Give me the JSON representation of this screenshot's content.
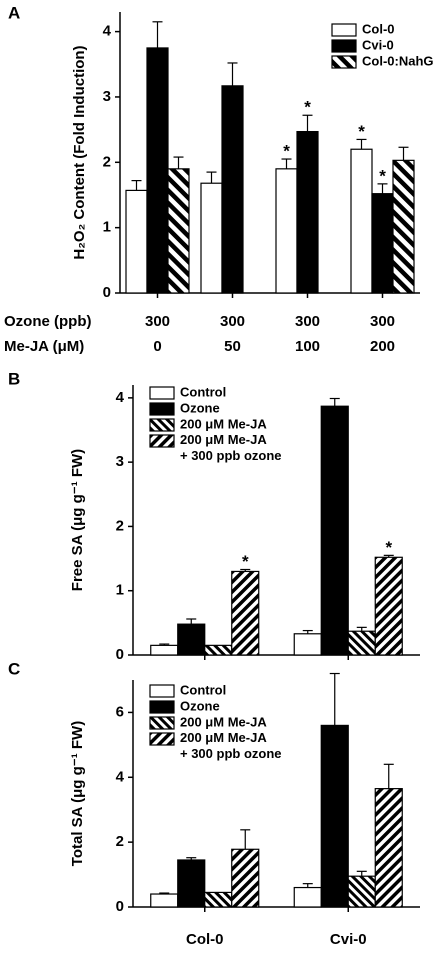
{
  "chart_data": [
    {
      "type": "bar",
      "panel": "A",
      "ylabel": "H₂O₂ Content (Fold Induction)",
      "ylim": [
        0,
        4.3
      ],
      "yticks": [
        0,
        1,
        2,
        3,
        4
      ],
      "categories": [
        null,
        null,
        null,
        null
      ],
      "category_rows": [
        {
          "label": "Ozone (ppb)",
          "values": [
            "300",
            "300",
            "300",
            "300"
          ]
        },
        {
          "label": "Me-JA (μM)",
          "values": [
            "0",
            "50",
            "100",
            "200"
          ]
        }
      ],
      "legend": "upper right",
      "series": [
        {
          "name": "Col-0",
          "color": "#ffffff",
          "pattern": "none",
          "values": [
            1.57,
            1.68,
            1.9,
            2.2
          ],
          "errors": [
            0.15,
            0.17,
            0.15,
            0.15
          ],
          "markers": [
            null,
            null,
            "*",
            "*"
          ]
        },
        {
          "name": "Cvi-0",
          "color": "#000000",
          "pattern": "none",
          "values": [
            3.75,
            3.17,
            2.47,
            1.52
          ],
          "errors": [
            0.4,
            0.35,
            0.25,
            0.15
          ],
          "markers": [
            null,
            null,
            "*",
            "*"
          ]
        },
        {
          "name": "Col-0:NahG",
          "color": "#000000",
          "pattern": "wide-hatch",
          "values": [
            1.9,
            null,
            null,
            2.03
          ],
          "errors": [
            0.18,
            null,
            null,
            0.2
          ],
          "markers": [
            null,
            null,
            null,
            null
          ]
        }
      ]
    },
    {
      "type": "bar",
      "panel": "B",
      "ylabel": "Free SA (μg g⁻¹ FW)",
      "ylim": [
        0,
        4.2
      ],
      "yticks": [
        0,
        1,
        2,
        3,
        4
      ],
      "categories": [
        null,
        null
      ],
      "legend": "upper left",
      "series": [
        {
          "name": "Control",
          "color": "#ffffff",
          "pattern": "none",
          "values": [
            0.15,
            0.33
          ],
          "errors": [
            0.02,
            0.05
          ],
          "markers": [
            null,
            null
          ]
        },
        {
          "name": "Ozone",
          "color": "#000000",
          "pattern": "none",
          "values": [
            0.48,
            3.87
          ],
          "errors": [
            0.08,
            0.12
          ],
          "markers": [
            null,
            null
          ]
        },
        {
          "name": "200 μM Me-JA",
          "color": "#000000",
          "pattern": "back-hatch",
          "values": [
            0.15,
            0.37
          ],
          "errors": [
            null,
            0.06
          ],
          "markers": [
            null,
            null
          ]
        },
        {
          "name": "200 μM Me-JA\n+ 300 ppb ozone",
          "color": "#000000",
          "pattern": "fwd-hatch",
          "values": [
            1.3,
            1.52
          ],
          "errors": [
            0.03,
            0.03
          ],
          "markers": [
            "*",
            "*"
          ]
        }
      ]
    },
    {
      "type": "bar",
      "panel": "C",
      "ylabel": "Total SA (μg g⁻¹ FW)",
      "ylim": [
        0,
        7
      ],
      "yticks": [
        0,
        2,
        4,
        6
      ],
      "categories": [
        "Col-0",
        "Cvi-0"
      ],
      "legend": "upper left",
      "series": [
        {
          "name": "Control",
          "color": "#ffffff",
          "pattern": "none",
          "values": [
            0.4,
            0.6
          ],
          "errors": [
            0.03,
            0.12
          ],
          "markers": [
            null,
            null
          ]
        },
        {
          "name": "Ozone",
          "color": "#000000",
          "pattern": "none",
          "values": [
            1.45,
            5.6
          ],
          "errors": [
            0.07,
            1.6
          ],
          "markers": [
            null,
            null
          ]
        },
        {
          "name": "200 μM Me-JA",
          "color": "#000000",
          "pattern": "back-hatch",
          "values": [
            0.45,
            0.95
          ],
          "errors": [
            null,
            0.15
          ],
          "markers": [
            null,
            null
          ]
        },
        {
          "name": "200 μM Me-JA\n+ 300 ppb ozone",
          "color": "#000000",
          "pattern": "fwd-hatch",
          "values": [
            1.78,
            3.65
          ],
          "errors": [
            0.6,
            0.75
          ],
          "markers": [
            null,
            null
          ]
        }
      ]
    }
  ]
}
